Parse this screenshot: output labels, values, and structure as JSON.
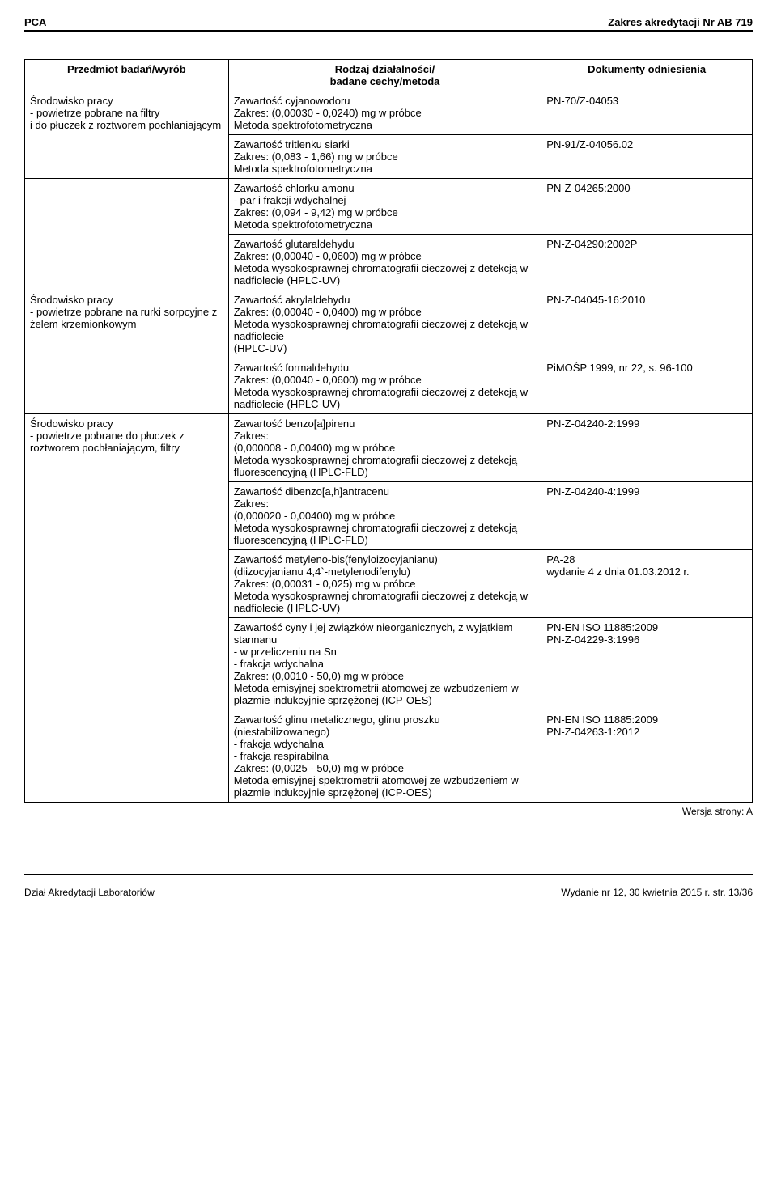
{
  "header": {
    "left": "PCA",
    "right": "Zakres akredytacji Nr AB 719"
  },
  "table": {
    "headers": {
      "c1": "Przedmiot badań/wyrób",
      "c2": "Rodzaj działalności/\nbadane cechy/metoda",
      "c3": "Dokumenty odniesienia"
    },
    "rows": [
      {
        "c1": "Środowisko pracy\n- powietrze pobrane na filtry\ni do płuczek z roztworem pochłaniającym",
        "c1_rowspan": 2,
        "c2": "Zawartość cyjanowodoru\nZakres: (0,00030 - 0,0240) mg w próbce\nMetoda spektrofotometryczna",
        "c3": "PN-70/Z-04053"
      },
      {
        "c2": "Zawartość tritlenku siarki\nZakres: (0,083 - 1,66) mg w próbce\nMetoda spektrofotometryczna",
        "c3": "PN-91/Z-04056.02"
      },
      {
        "c1": "",
        "c1_rowspan": 2,
        "c2": "Zawartość chlorku amonu\n- par i frakcji wdychalnej\nZakres: (0,094 - 9,42) mg w próbce\nMetoda spektrofotometryczna",
        "c3": "PN-Z-04265:2000"
      },
      {
        "c2": "Zawartość glutaraldehydu\nZakres: (0,00040 - 0,0600) mg w próbce\nMetoda wysokosprawnej chromatografii cieczowej z detekcją w nadfiolecie (HPLC-UV)",
        "c3": "PN-Z-04290:2002P"
      },
      {
        "c1": "Środowisko pracy\n- powietrze pobrane na rurki sorpcyjne z żelem krzemionkowym",
        "c1_rowspan": 2,
        "c2": "Zawartość akrylaldehydu\nZakres: (0,00040 - 0,0400) mg w próbce\nMetoda wysokosprawnej chromatografii cieczowej z detekcją w nadfiolecie\n (HPLC-UV)",
        "c3": "PN-Z-04045-16:2010"
      },
      {
        "c2": "Zawartość formaldehydu\nZakres: (0,00040 - 0,0600) mg w próbce\nMetoda wysokosprawnej chromatografii cieczowej z detekcją w nadfiolecie (HPLC-UV)",
        "c3": "PiMOŚP 1999, nr 22, s. 96-100"
      },
      {
        "c1": "Środowisko pracy\n- powietrze pobrane do płuczek z roztworem pochłaniającym, filtry",
        "c1_rowspan": 5,
        "c2": "Zawartość benzo[a]pirenu\nZakres:\n          (0,000008 - 0,00400) mg w próbce\nMetoda wysokosprawnej chromatografii cieczowej z detekcją fluorescencyjną (HPLC-FLD)",
        "c3": "PN-Z-04240-2:1999"
      },
      {
        "c2": "Zawartość dibenzo[a,h]antracenu\nZakres:\n          (0,000020 - 0,00400) mg w próbce\nMetoda wysokosprawnej chromatografii cieczowej z detekcją fluorescencyjną (HPLC-FLD)",
        "c3": "PN-Z-04240-4:1999"
      },
      {
        "c2": "Zawartość metyleno-bis(fenyloizocyjanianu)\n(diizocyjanianu 4,4`-metylenodifenylu)\nZakres: (0,00031 - 0,025) mg w próbce\nMetoda wysokosprawnej chromatografii cieczowej z detekcją w nadfiolecie (HPLC-UV)",
        "c3": "PA-28\nwydanie 4 z dnia 01.03.2012 r."
      },
      {
        "c2": "Zawartość cyny i jej związków nieorganicznych, z wyjątkiem stannanu\n- w przeliczeniu na Sn\n          - frakcja wdychalna\nZakres: (0,0010 - 50,0) mg w próbce\nMetoda emisyjnej spektrometrii atomowej ze wzbudzeniem w plazmie indukcyjnie sprzężonej (ICP-OES)",
        "c3": "PN-EN ISO 11885:2009\nPN-Z-04229-3:1996"
      },
      {
        "c2": "Zawartość glinu metalicznego, glinu proszku (niestabilizowanego)\n          - frakcja wdychalna\n          - frakcja respirabilna\nZakres: (0,0025 - 50,0) mg w próbce\nMetoda emisyjnej spektrometrii atomowej ze wzbudzeniem w plazmie indukcyjnie sprzężonej (ICP-OES)",
        "c3": "PN-EN ISO 11885:2009\nPN-Z-04263-1:2012"
      }
    ]
  },
  "version": "Wersja strony: A",
  "footer": {
    "left": "Dział Akredytacji Laboratoriów",
    "right": "Wydanie nr 12, 30 kwietnia 2015 r.    str. 13/36"
  }
}
